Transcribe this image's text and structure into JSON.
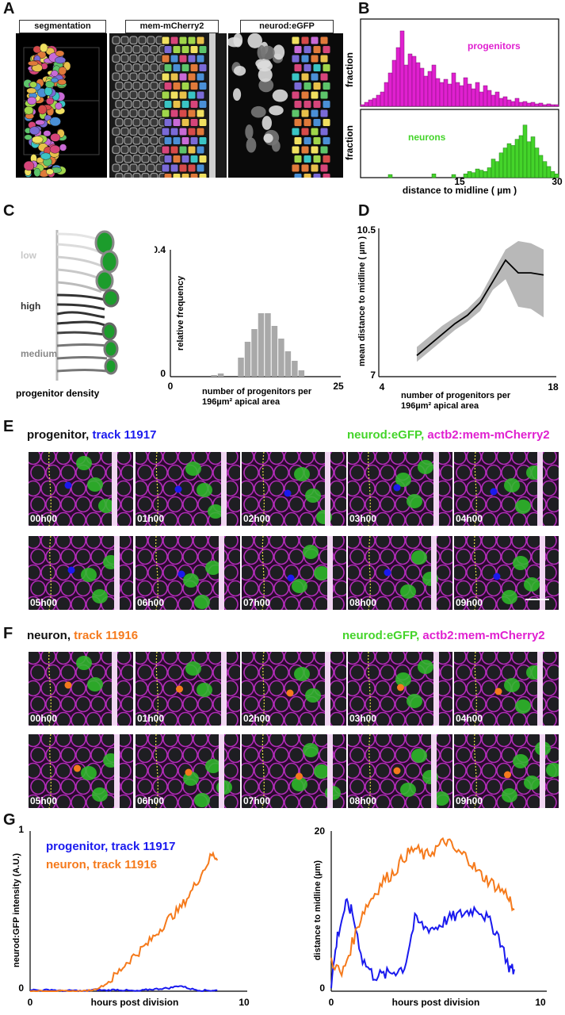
{
  "panels": {
    "A": "A",
    "B": "B",
    "C": "C",
    "D": "D",
    "E": "E",
    "F": "F",
    "G": "G"
  },
  "panel_a": {
    "labels": [
      "segmentation",
      "mem-mCherry2",
      "neurod:eGFP"
    ]
  },
  "panel_b": {
    "top_label": "progenitors",
    "bottom_label": "neurons",
    "ylabel_top": "fraction",
    "ylabel_bottom": "fraction",
    "xlabel": "distance to midline  ( µm )",
    "xticks": [
      "15",
      "30"
    ],
    "colors": {
      "progenitors": "#e020d0",
      "neurons": "#44d42a"
    }
  },
  "panel_c": {
    "diagram_labels": [
      "low",
      "high",
      "medium"
    ],
    "diagram_caption": "progenitor density",
    "ylabel": "relative frequency",
    "yticks": [
      "0.4",
      "0"
    ],
    "xticks": [
      "0",
      "25"
    ],
    "xlabel_line1": "number of progenitors per",
    "xlabel_line2": "196µm² apical area"
  },
  "panel_d": {
    "ylabel": "mean distance to midline ( µm )",
    "yticks": [
      "10.5",
      "7"
    ],
    "xticks": [
      "4",
      "18"
    ],
    "xlabel_line1": "number of progenitors per",
    "xlabel_line2": "196µm² apical area"
  },
  "panel_e": {
    "title_black": "progenitor, ",
    "title_colored": "track 11917",
    "channel_green": "neurod:eGFP, ",
    "channel_magenta": "actb2:mem-mCherry2",
    "times": [
      "00h00",
      "01h00",
      "02h00",
      "03h00",
      "04h00",
      "05h00",
      "06h00",
      "07h00",
      "08h00",
      "09h00"
    ],
    "dot_color": "#1a1aee"
  },
  "panel_f": {
    "title_black": "neuron, ",
    "title_colored": "track 11916",
    "channel_green": "neurod:eGFP, ",
    "channel_magenta": "actb2:mem-mCherry2",
    "times": [
      "00h00",
      "01h00",
      "02h00",
      "03h00",
      "04h00",
      "05h00",
      "06h00",
      "07h00",
      "08h00",
      "09h00"
    ],
    "dot_color": "#f57a1c"
  },
  "panel_g": {
    "legend_progenitor": "progenitor, track 11917",
    "legend_neuron": "neuron, track 11916",
    "left_ylabel": "neurod:GFP intensity (A.U.)",
    "right_ylabel": "distance to midline (µm)",
    "xlabel": "hours post division",
    "left_yticks": [
      "1",
      "0"
    ],
    "right_yticks": [
      "20",
      "0"
    ],
    "xticks": [
      "0",
      "10"
    ]
  },
  "chart_data": [
    {
      "type": "bar",
      "panel": "B-top",
      "series": [
        {
          "name": "progenitors",
          "color": "#e020d0",
          "values": [
            0.02,
            0.05,
            0.08,
            0.1,
            0.14,
            0.18,
            0.3,
            0.42,
            0.58,
            0.74,
            0.95,
            0.52,
            0.66,
            0.63,
            0.55,
            0.48,
            0.38,
            0.44,
            0.52,
            0.35,
            0.3,
            0.34,
            0.28,
            0.42,
            0.3,
            0.26,
            0.36,
            0.28,
            0.22,
            0.3,
            0.18,
            0.26,
            0.2,
            0.14,
            0.18,
            0.1,
            0.12,
            0.08,
            0.06,
            0.1,
            0.05,
            0.06,
            0.04,
            0.05,
            0.03,
            0.04,
            0.02,
            0.03,
            0.02,
            0.02
          ]
        }
      ],
      "xlim": [
        0,
        30
      ],
      "xlabel": "distance to midline  ( µm )",
      "ylabel": "fraction"
    },
    {
      "type": "bar",
      "panel": "B-bottom",
      "series": [
        {
          "name": "neurons",
          "color": "#44d42a",
          "values": [
            0,
            0,
            0,
            0,
            0,
            0,
            0,
            0.05,
            0,
            0,
            0,
            0,
            0,
            0,
            0,
            0,
            0,
            0,
            0.06,
            0,
            0,
            0,
            0,
            0.05,
            0,
            0,
            0.06,
            0.1,
            0.08,
            0.14,
            0.12,
            0.1,
            0.16,
            0.3,
            0.26,
            0.4,
            0.48,
            0.55,
            0.52,
            0.62,
            0.68,
            0.85,
            0.58,
            0.66,
            0.48,
            0.36,
            0.26,
            0.18,
            0.1,
            0.06
          ]
        }
      ],
      "xlim": [
        0,
        30
      ],
      "xticks": [
        15,
        30
      ],
      "xlabel": "distance to midline  ( µm )",
      "ylabel": "fraction"
    },
    {
      "type": "bar",
      "panel": "C",
      "categories": [
        1,
        2,
        3,
        4,
        5,
        6,
        7,
        8,
        9,
        10,
        11,
        12,
        13,
        14,
        15,
        16,
        17,
        18,
        19,
        20,
        21,
        22,
        23,
        24,
        25
      ],
      "values": [
        0,
        0,
        0,
        0,
        0,
        0,
        0.005,
        0.01,
        0,
        0,
        0.06,
        0.11,
        0.15,
        0.2,
        0.2,
        0.16,
        0.12,
        0.08,
        0.05,
        0.02,
        0,
        0,
        0,
        0,
        0
      ],
      "ylim": [
        0,
        0.4
      ],
      "xlim": [
        0,
        25
      ],
      "ylabel": "relative frequency",
      "xlabel": "number of progenitors per 196µm² apical area"
    },
    {
      "type": "line",
      "panel": "D",
      "x": [
        7,
        8,
        9,
        10,
        11,
        12,
        13,
        14,
        15,
        16,
        17
      ],
      "y": [
        7.5,
        7.75,
        8.0,
        8.25,
        8.45,
        8.75,
        9.25,
        9.75,
        9.45,
        9.45,
        9.4
      ],
      "band_low": [
        7.35,
        7.6,
        7.85,
        8.1,
        8.3,
        8.55,
        9.05,
        9.3,
        8.65,
        8.6,
        8.4
      ],
      "band_high": [
        7.7,
        7.95,
        8.2,
        8.4,
        8.6,
        8.9,
        9.45,
        10.0,
        10.2,
        10.15,
        10.0
      ],
      "xlim": [
        4,
        18
      ],
      "ylim": [
        7,
        10.5
      ],
      "ylabel": "mean distance to midline ( µm )",
      "xlabel": "number of progenitors per 196µm² apical area"
    },
    {
      "type": "line",
      "panel": "G-left",
      "series": [
        {
          "name": "progenitor, track 11917",
          "color": "#1a1aee",
          "x": [
            0,
            0.5,
            1,
            1.5,
            2,
            2.5,
            3,
            3.5,
            4,
            4.5,
            5,
            5.5,
            6,
            6.5,
            7,
            7.5,
            8,
            8.5,
            8.8
          ],
          "y": [
            0.01,
            0.005,
            0.01,
            0.0,
            0.005,
            0.0,
            0.01,
            0.005,
            0.01,
            0.005,
            0.0,
            0.01,
            0.015,
            0.02,
            0.035,
            0.015,
            0.005,
            0.005,
            0.005
          ]
        },
        {
          "name": "neuron, track 11916",
          "color": "#f57a1c",
          "x": [
            0,
            0.5,
            1,
            1.5,
            2,
            2.5,
            3,
            3.5,
            4,
            4.5,
            5,
            5.5,
            6,
            6.5,
            7,
            7.5,
            8,
            8.5,
            8.8
          ],
          "y": [
            0,
            0,
            0,
            0,
            0,
            0.0,
            0.01,
            0.04,
            0.1,
            0.18,
            0.24,
            0.3,
            0.38,
            0.46,
            0.52,
            0.62,
            0.74,
            0.86,
            0.84
          ]
        }
      ],
      "xlim": [
        0,
        10
      ],
      "ylim": [
        0,
        1
      ],
      "xlabel": "hours post division",
      "ylabel": "neurod:GFP intensity (A.U.)"
    },
    {
      "type": "line",
      "panel": "G-right",
      "series": [
        {
          "name": "progenitor, track 11917",
          "color": "#1a1aee",
          "x": [
            0,
            0.3,
            0.7,
            1,
            1.5,
            2,
            2.5,
            3,
            3.5,
            4,
            4.5,
            5,
            5.5,
            6,
            6.5,
            7,
            7.5,
            8,
            8.5,
            8.8
          ],
          "y": [
            1,
            7,
            11,
            10,
            4,
            2,
            2,
            2.5,
            3,
            9,
            8,
            8,
            9,
            9.5,
            10,
            10.5,
            9,
            7,
            3,
            2.5
          ]
        },
        {
          "name": "neuron, track 11916",
          "color": "#f57a1c",
          "x": [
            0,
            0.5,
            1,
            1.5,
            2,
            2.5,
            3,
            3.5,
            4,
            4.5,
            5,
            5.5,
            6,
            6.5,
            7,
            7.5,
            8,
            8.5,
            8.8
          ],
          "y": [
            4,
            2,
            6,
            10,
            12,
            14,
            15,
            17,
            18,
            17,
            18,
            19,
            17.5,
            17,
            15,
            14,
            13,
            12,
            9
          ]
        }
      ],
      "xlim": [
        0,
        10
      ],
      "ylim": [
        0,
        20
      ],
      "xlabel": "hours post division",
      "ylabel": "distance to midline (µm)"
    }
  ]
}
